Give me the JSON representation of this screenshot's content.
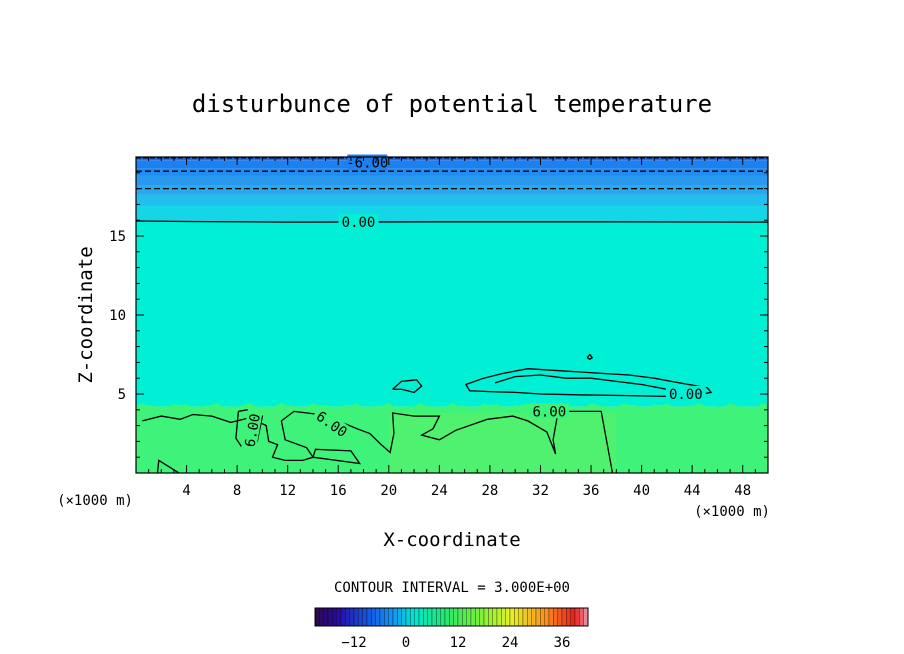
{
  "chart_data": {
    "type": "contour",
    "title": "disturbunce of potential temperature",
    "xlabel": "X-coordinate",
    "ylabel": "Z-coordinate",
    "x_unit": "(×1000 m)",
    "y_unit": "(×1000 m)",
    "xlim": [
      0,
      50
    ],
    "ylim": [
      0,
      20
    ],
    "x_ticks": [
      4,
      8,
      12,
      16,
      20,
      24,
      28,
      32,
      36,
      40,
      44,
      48
    ],
    "y_ticks": [
      5,
      10,
      15
    ],
    "contour_interval_text": "CONTOUR INTERVAL = 3.000E+00",
    "colorbar": {
      "range": [
        -21,
        42
      ],
      "tick_values": [
        -12,
        0,
        12,
        24,
        36
      ]
    },
    "contour_labels": [
      {
        "text": "-6.00",
        "x": 18.3,
        "z": 19.65
      },
      {
        "text": "0.00",
        "x": 17.6,
        "z": 15.9
      },
      {
        "text": "0.00",
        "x": 43.5,
        "z": 5.0
      },
      {
        "text": "6.00",
        "x": 32.7,
        "z": 3.9
      },
      {
        "text": "6.00",
        "x": 9.2,
        "z": 2.7
      },
      {
        "text": "6.00",
        "x": 15.5,
        "z": 3.1
      }
    ],
    "colors": {
      "upper_blue": "#1e7ff0",
      "mid_blue": "#27a9ee",
      "cyan": "#00f0d6",
      "green": "#3ef27a",
      "green_light": "#4ff16f"
    }
  }
}
